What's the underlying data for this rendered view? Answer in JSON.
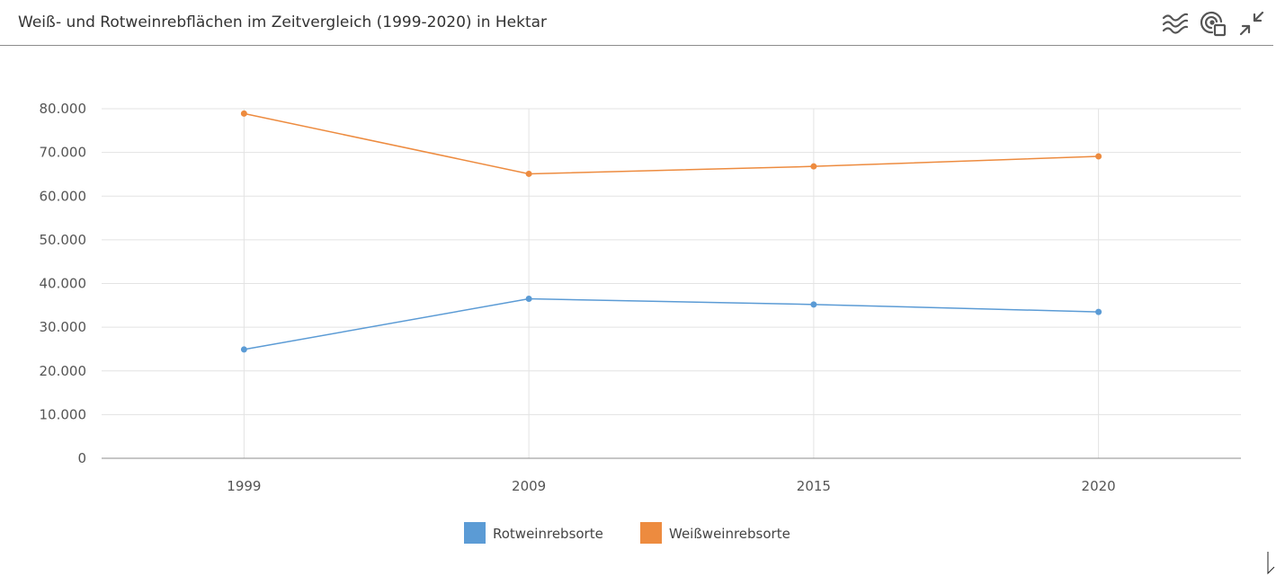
{
  "header": {
    "title": "Weiß- und Rotweinrebflächen im Zeitvergleich (1999-2020) in Hektar"
  },
  "toolbar": {
    "icons": [
      "waves-icon",
      "touch-select-icon",
      "collapse-icon"
    ]
  },
  "colors": {
    "rot": "#5b9bd5",
    "weiss": "#ed8b3f",
    "grid": "#e3e3e3",
    "axis": "#8c8c8c"
  },
  "chart_data": {
    "type": "line",
    "title": "Weiß- und Rotweinrebflächen im Zeitvergleich (1999-2020) in Hektar",
    "categories": [
      "1999",
      "2009",
      "2015",
      "2020"
    ],
    "series": [
      {
        "name": "Rotweinrebsorte",
        "values": [
          24900,
          36500,
          35200,
          33500
        ]
      },
      {
        "name": "Weißweinrebsorte",
        "values": [
          78900,
          65100,
          66800,
          69100
        ]
      }
    ],
    "ylim": [
      0,
      80000
    ],
    "yticks": [
      "0",
      "10.000",
      "20.000",
      "30.000",
      "40.000",
      "50.000",
      "60.000",
      "70.000",
      "80.000"
    ],
    "xlabel": "",
    "ylabel": "",
    "grid": true,
    "legend": "bottom-center"
  }
}
